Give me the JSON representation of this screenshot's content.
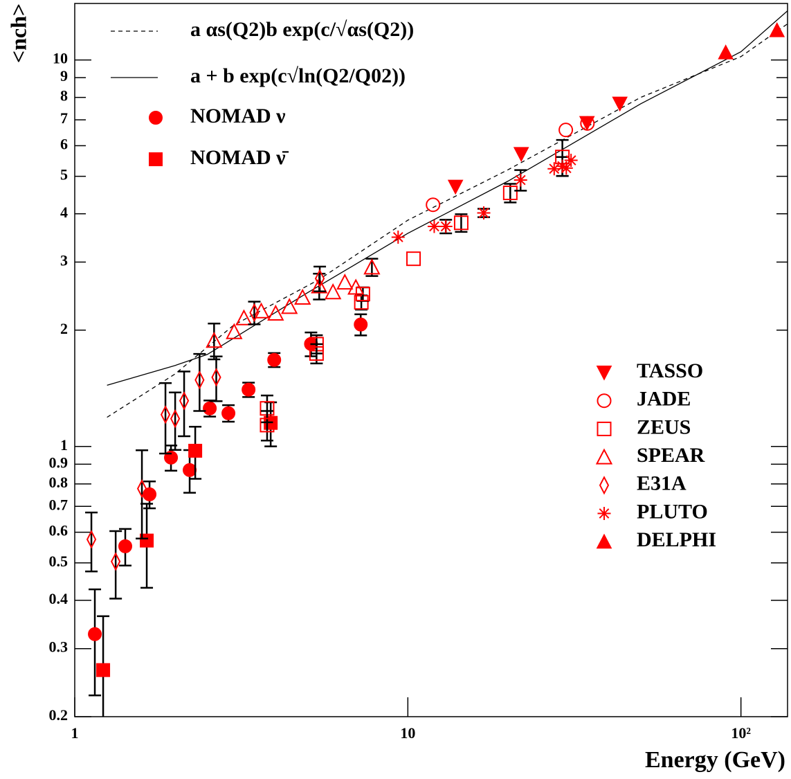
{
  "chart_data": {
    "type": "scatter",
    "x_label": "Energy (GeV)",
    "y_label": "<nch>",
    "log_x": true,
    "log_y": true,
    "xlim": [
      1,
      138
    ],
    "ylim": [
      0.2,
      14
    ],
    "xticks": [
      1,
      10,
      {
        "value": 100,
        "label": "10²"
      }
    ],
    "yticks": [
      0.2,
      0.3,
      0.4,
      0.5,
      0.6,
      0.7,
      0.8,
      0.9,
      1,
      2,
      3,
      4,
      5,
      6,
      7,
      8,
      9,
      10
    ],
    "series": [
      {
        "name": "a αs(Q2)b exp(c/√αs(Q2))",
        "type": "line",
        "dash": true,
        "color": "#000000",
        "x": [
          1.25,
          2,
          3,
          5.4,
          10,
          20,
          50,
          100,
          138
        ],
        "values": [
          1.19,
          1.54,
          2.06,
          2.7,
          3.85,
          5.2,
          8.0,
          10.2,
          12.4
        ]
      },
      {
        "name": "a + b exp(c√ln(Q2/Q02))",
        "type": "line",
        "dash": false,
        "color": "#000000",
        "x": [
          1.25,
          2,
          2.5,
          5,
          10,
          20,
          50,
          100,
          138
        ],
        "values": [
          1.44,
          1.62,
          1.73,
          2.5,
          3.56,
          4.86,
          7.7,
          10.5,
          13.4
        ]
      },
      {
        "name": "NOMAD ν",
        "marker": "circle",
        "color": "#ff0000",
        "x": [
          1.149,
          1.418,
          1.677,
          1.945,
          2.213,
          2.543,
          2.893,
          3.325,
          3.97,
          5.12,
          7.22
        ],
        "values": [
          0.327,
          0.552,
          0.752,
          0.936,
          0.869,
          1.255,
          1.219,
          1.403,
          1.675,
          1.842,
          2.068
        ],
        "errors": [
          0.1,
          0.06,
          0.06,
          0.07,
          0.11,
          0.06,
          0.06,
          0.06,
          0.07,
          0.13,
          0.13
        ]
      },
      {
        "name": "NOMAD ν̄",
        "marker": "square",
        "color": "#ff0000",
        "x": [
          1.217,
          1.645,
          2.3,
          3.875
        ],
        "values": [
          0.264,
          0.571,
          0.975,
          1.151
        ],
        "errors": [
          0.1,
          0.14,
          0.15,
          0.15
        ]
      },
      {
        "name": "TASSO",
        "marker": "triangle-down",
        "color": "#ff0000",
        "x": [
          13.9,
          21.9,
          34.5,
          43.3
        ],
        "values": [
          4.7,
          5.71,
          6.87,
          7.71
        ]
      },
      {
        "name": "JADE",
        "marker": "circle-open",
        "color": "#ff0000",
        "x": [
          11.9,
          29.8,
          34.6
        ],
        "values": [
          4.22,
          6.59,
          6.85
        ]
      },
      {
        "name": "ZEUS",
        "marker": "square-open",
        "color": "#ff0000",
        "x": [
          5.32,
          5.32,
          3.78,
          3.78,
          7.25,
          7.33,
          10.4,
          14.46,
          20.3,
          29.1
        ],
        "values": [
          1.84,
          1.74,
          1.255,
          1.136,
          2.36,
          2.48,
          3.06,
          3.79,
          4.53,
          5.61
        ],
        "errors": [
          0.1,
          0.1,
          0.1,
          0.1,
          0.1,
          0.1,
          null,
          0.2,
          0.25,
          0.6
        ]
      },
      {
        "name": "SPEAR",
        "marker": "triangle-open",
        "color": "#ff0000",
        "x": [
          2.62,
          3.01,
          3.22,
          3.63,
          4.01,
          4.41,
          4.83,
          5.42,
          5.96,
          6.47,
          6.98,
          7.8
        ],
        "values": [
          1.88,
          1.98,
          2.15,
          2.24,
          2.21,
          2.3,
          2.43,
          2.6,
          2.51,
          2.66,
          2.58,
          2.91
        ],
        "errors": [
          0.2,
          null,
          null,
          null,
          null,
          null,
          null,
          0.2,
          null,
          null,
          null,
          0.15
        ]
      },
      {
        "name": "E31A",
        "marker": "diamond-open",
        "color": "#ff0000",
        "x": [
          1.122,
          1.327,
          1.591,
          1.872,
          2.002,
          2.13,
          2.37,
          2.66,
          3.46,
          5.44
        ],
        "values": [
          0.575,
          0.504,
          0.778,
          1.209,
          1.18,
          1.313,
          1.486,
          1.51,
          2.22,
          2.72
        ],
        "errors": [
          0.1,
          0.1,
          0.2,
          0.25,
          0.2,
          0.25,
          0.25,
          0.2,
          0.15,
          0.2
        ]
      },
      {
        "name": "PLUTO",
        "marker": "asterisk",
        "color": "#ff0000",
        "x": [
          9.35,
          12.0,
          13.0,
          16.9,
          21.8,
          27.5,
          29.1,
          29.9,
          30.9
        ],
        "values": [
          3.48,
          3.71,
          3.71,
          4.02,
          4.89,
          5.23,
          5.31,
          5.25,
          5.5
        ],
        "errors": [
          null,
          null,
          0.15,
          0.1,
          0.3,
          null,
          0.3,
          null,
          null
        ]
      },
      {
        "name": "DELPHI",
        "marker": "triangle-up",
        "color": "#ff0000",
        "x": [
          90.0,
          128.3
        ],
        "values": [
          10.46,
          11.94
        ]
      }
    ]
  }
}
